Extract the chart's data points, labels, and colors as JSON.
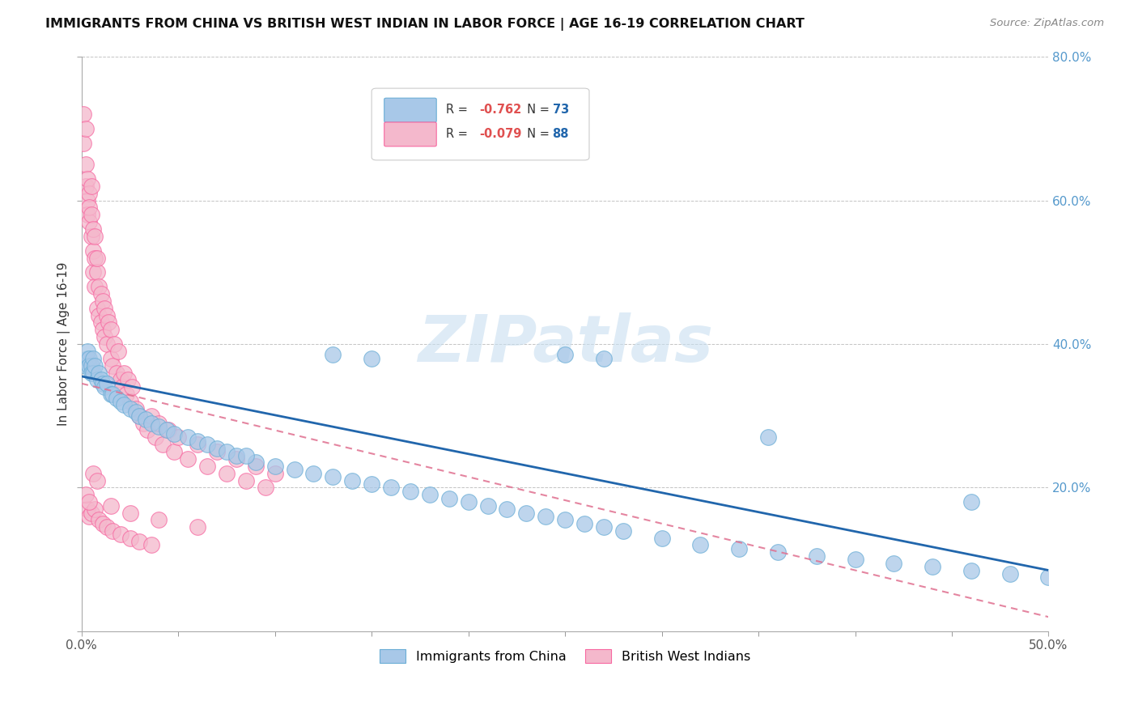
{
  "title": "IMMIGRANTS FROM CHINA VS BRITISH WEST INDIAN IN LABOR FORCE | AGE 16-19 CORRELATION CHART",
  "source": "Source: ZipAtlas.com",
  "ylabel": "In Labor Force | Age 16-19",
  "xlim": [
    0.0,
    0.5
  ],
  "ylim": [
    0.0,
    0.8
  ],
  "yticks": [
    0.0,
    0.2,
    0.4,
    0.6,
    0.8
  ],
  "yticklabels_right": [
    "",
    "20.0%",
    "40.0%",
    "60.0%",
    "80.0%"
  ],
  "xtick_positions": [
    0.0,
    0.5
  ],
  "xticklabels": [
    "0.0%",
    "50.0%"
  ],
  "china_color": "#a8c8e8",
  "china_edge_color": "#6baed6",
  "bwi_color": "#f4b8cc",
  "bwi_edge_color": "#f768a1",
  "china_line_color": "#2166ac",
  "bwi_line_color": "#e07090",
  "china_R": "-0.762",
  "china_N": "73",
  "bwi_R": "-0.079",
  "bwi_N": "88",
  "watermark": "ZIPatlas",
  "china_x": [
    0.002,
    0.003,
    0.003,
    0.004,
    0.004,
    0.005,
    0.005,
    0.006,
    0.006,
    0.007,
    0.008,
    0.009,
    0.01,
    0.011,
    0.012,
    0.013,
    0.015,
    0.016,
    0.018,
    0.02,
    0.022,
    0.025,
    0.028,
    0.03,
    0.033,
    0.036,
    0.04,
    0.044,
    0.048,
    0.055,
    0.06,
    0.065,
    0.07,
    0.075,
    0.08,
    0.09,
    0.1,
    0.11,
    0.12,
    0.13,
    0.14,
    0.15,
    0.16,
    0.17,
    0.18,
    0.19,
    0.2,
    0.21,
    0.22,
    0.23,
    0.24,
    0.25,
    0.26,
    0.27,
    0.28,
    0.3,
    0.32,
    0.34,
    0.36,
    0.38,
    0.4,
    0.42,
    0.44,
    0.46,
    0.48,
    0.5,
    0.13,
    0.25,
    0.27,
    0.355,
    0.15,
    0.085,
    0.46
  ],
  "china_y": [
    0.37,
    0.38,
    0.39,
    0.38,
    0.37,
    0.37,
    0.36,
    0.38,
    0.36,
    0.37,
    0.35,
    0.36,
    0.35,
    0.345,
    0.34,
    0.345,
    0.33,
    0.33,
    0.325,
    0.32,
    0.315,
    0.31,
    0.305,
    0.3,
    0.295,
    0.29,
    0.285,
    0.28,
    0.275,
    0.27,
    0.265,
    0.26,
    0.255,
    0.25,
    0.245,
    0.235,
    0.23,
    0.225,
    0.22,
    0.215,
    0.21,
    0.205,
    0.2,
    0.195,
    0.19,
    0.185,
    0.18,
    0.175,
    0.17,
    0.165,
    0.16,
    0.155,
    0.15,
    0.145,
    0.14,
    0.13,
    0.12,
    0.115,
    0.11,
    0.105,
    0.1,
    0.095,
    0.09,
    0.085,
    0.08,
    0.075,
    0.385,
    0.385,
    0.38,
    0.27,
    0.38,
    0.245,
    0.18
  ],
  "bwi_x": [
    0.001,
    0.001,
    0.002,
    0.002,
    0.002,
    0.003,
    0.003,
    0.003,
    0.004,
    0.004,
    0.004,
    0.005,
    0.005,
    0.005,
    0.006,
    0.006,
    0.006,
    0.007,
    0.007,
    0.007,
    0.008,
    0.008,
    0.008,
    0.009,
    0.009,
    0.01,
    0.01,
    0.011,
    0.011,
    0.012,
    0.012,
    0.013,
    0.013,
    0.014,
    0.015,
    0.015,
    0.016,
    0.017,
    0.018,
    0.019,
    0.02,
    0.021,
    0.022,
    0.023,
    0.024,
    0.025,
    0.026,
    0.028,
    0.03,
    0.032,
    0.034,
    0.036,
    0.038,
    0.04,
    0.042,
    0.045,
    0.048,
    0.05,
    0.055,
    0.06,
    0.065,
    0.07,
    0.075,
    0.08,
    0.085,
    0.09,
    0.095,
    0.1,
    0.003,
    0.004,
    0.005,
    0.007,
    0.009,
    0.011,
    0.013,
    0.016,
    0.02,
    0.025,
    0.03,
    0.036,
    0.002,
    0.004,
    0.006,
    0.008,
    0.015,
    0.025,
    0.04,
    0.06
  ],
  "bwi_y": [
    0.72,
    0.68,
    0.7,
    0.65,
    0.62,
    0.6,
    0.63,
    0.58,
    0.61,
    0.57,
    0.59,
    0.62,
    0.55,
    0.58,
    0.53,
    0.56,
    0.5,
    0.52,
    0.48,
    0.55,
    0.5,
    0.45,
    0.52,
    0.48,
    0.44,
    0.47,
    0.43,
    0.46,
    0.42,
    0.45,
    0.41,
    0.44,
    0.4,
    0.43,
    0.38,
    0.42,
    0.37,
    0.4,
    0.36,
    0.39,
    0.35,
    0.34,
    0.36,
    0.33,
    0.35,
    0.32,
    0.34,
    0.31,
    0.3,
    0.29,
    0.28,
    0.3,
    0.27,
    0.29,
    0.26,
    0.28,
    0.25,
    0.27,
    0.24,
    0.26,
    0.23,
    0.25,
    0.22,
    0.24,
    0.21,
    0.23,
    0.2,
    0.22,
    0.17,
    0.16,
    0.165,
    0.17,
    0.155,
    0.15,
    0.145,
    0.14,
    0.135,
    0.13,
    0.125,
    0.12,
    0.19,
    0.18,
    0.22,
    0.21,
    0.175,
    0.165,
    0.155,
    0.145
  ]
}
